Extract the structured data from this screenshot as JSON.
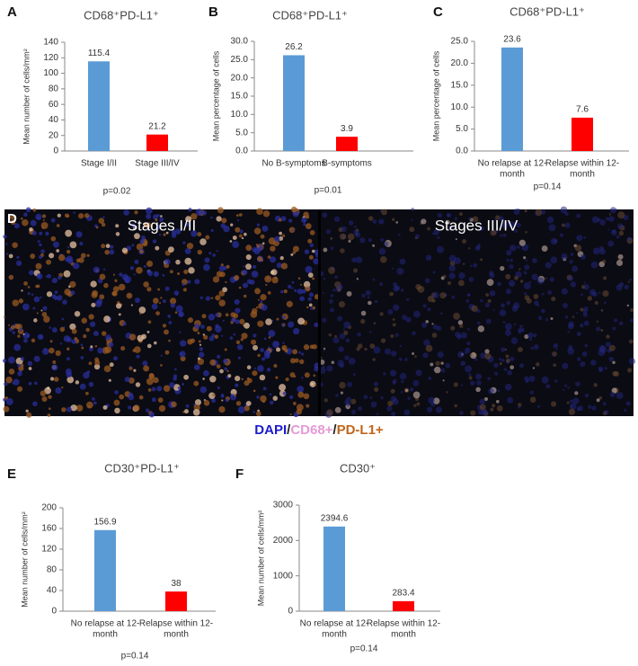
{
  "chart_data": [
    {
      "type": "bar",
      "panel": "A",
      "title": "CD68⁺PD-L1⁺",
      "ylabel": "Mean number of cells/mm²",
      "categories": [
        [
          "Stage I/II"
        ],
        [
          "Stage III/IV"
        ]
      ],
      "values": [
        115.4,
        21.2
      ],
      "colors": [
        "#5b9bd5",
        "#ff0000"
      ],
      "ylim": [
        0,
        140
      ],
      "yticks": [
        0,
        20,
        40,
        60,
        80,
        100,
        120,
        140
      ],
      "note": "p=0.02"
    },
    {
      "type": "bar",
      "panel": "B",
      "title": "CD68⁺PD-L1⁺",
      "ylabel": "Mean percentage of cells",
      "categories": [
        [
          "No B-symptoms"
        ],
        [
          "B-symptoms"
        ]
      ],
      "values": [
        26.2,
        3.9
      ],
      "colors": [
        "#5b9bd5",
        "#ff0000"
      ],
      "ylim": [
        0,
        30
      ],
      "yticks": [
        {
          "value": 0,
          "label": "0.0"
        },
        {
          "value": 5,
          "label": "5.0"
        },
        {
          "value": 10,
          "label": "10.0"
        },
        {
          "value": 15,
          "label": "15.0"
        },
        {
          "value": 20,
          "label": "20.0"
        },
        {
          "value": 25,
          "label": "25.0"
        },
        {
          "value": 30,
          "label": "30.0"
        }
      ],
      "note": "p=0.01"
    },
    {
      "type": "bar",
      "panel": "C",
      "title": "CD68⁺PD-L1⁺",
      "ylabel": "Mean percentage of cells",
      "categories": [
        [
          "No relapse at 12-",
          "month"
        ],
        [
          "Relapse within 12-",
          "month"
        ]
      ],
      "values": [
        23.6,
        7.6
      ],
      "colors": [
        "#5b9bd5",
        "#ff0000"
      ],
      "ylim": [
        0,
        25
      ],
      "yticks": [
        {
          "value": 0,
          "label": "0.0"
        },
        {
          "value": 5,
          "label": "5.0"
        },
        {
          "value": 10,
          "label": "10.0"
        },
        {
          "value": 15,
          "label": "15.0"
        },
        {
          "value": 20,
          "label": "20.0"
        },
        {
          "value": 25,
          "label": "25.0"
        }
      ],
      "note": "p=0.14"
    },
    {
      "type": "bar",
      "panel": "E",
      "title": "CD30⁺PD-L1⁺",
      "ylabel": "Mean number of cells/mm²",
      "categories": [
        [
          "No relapse at 12-",
          "month"
        ],
        [
          "Relapse within 12-",
          "month"
        ]
      ],
      "values": [
        156.9,
        38
      ],
      "colors": [
        "#5b9bd5",
        "#ff0000"
      ],
      "ylim": [
        0,
        200
      ],
      "yticks": [
        0,
        40,
        80,
        120,
        160,
        200
      ],
      "note": "p=0.14"
    },
    {
      "type": "bar",
      "panel": "F",
      "title": "CD30⁺",
      "ylabel": "Mean number of cells/mm²",
      "categories": [
        [
          "No relapse at 12-",
          "month"
        ],
        [
          "Relapse within 12-",
          "month"
        ]
      ],
      "values": [
        2394.6,
        283.4
      ],
      "colors": [
        "#5b9bd5",
        "#ff0000"
      ],
      "ylim": [
        0,
        3000
      ],
      "yticks": [
        0,
        1000,
        2000,
        3000
      ],
      "note": "p=0.14"
    }
  ],
  "micrograph": {
    "panel": "D",
    "labels": [
      "Stages I/II",
      "Stages III/IV"
    ],
    "caption": [
      {
        "text": "DAPI",
        "color": "#1c1ccc"
      },
      {
        "text": "/",
        "color": "#222222"
      },
      {
        "text": "CD68+",
        "color": "#e59ad6"
      },
      {
        "text": "/",
        "color": "#222222"
      },
      {
        "text": "PD-L1+",
        "color": "#c0651b"
      }
    ]
  }
}
